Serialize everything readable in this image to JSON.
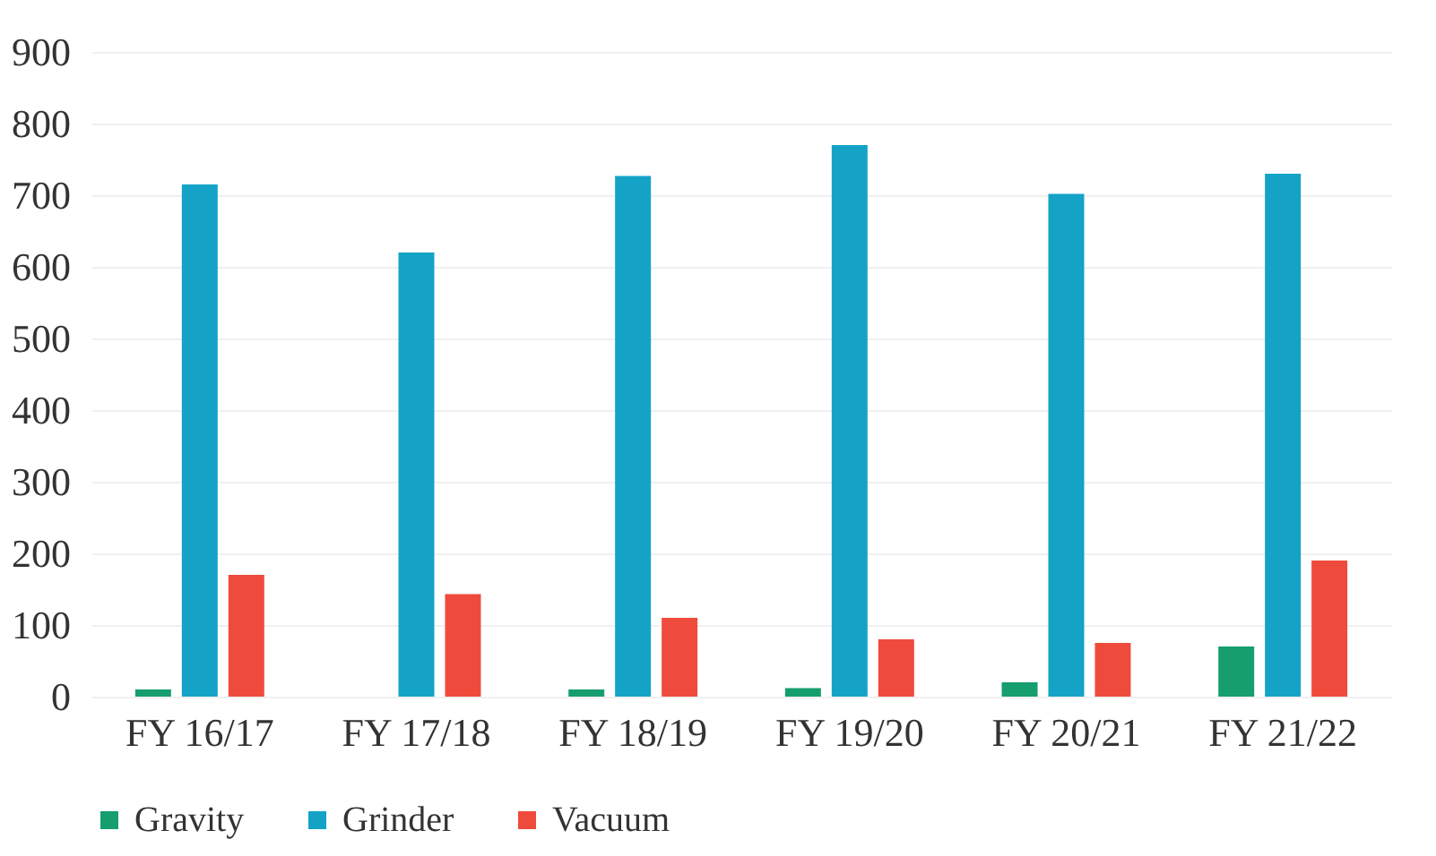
{
  "chart_data": {
    "type": "bar",
    "categories": [
      "FY 16/17",
      "FY 17/18",
      "FY 18/19",
      "FY 19/20",
      "FY 20/21",
      "FY 21/22"
    ],
    "series": [
      {
        "name": "Gravity",
        "color": "#169e6e",
        "values": [
          10,
          0,
          10,
          12,
          20,
          70
        ]
      },
      {
        "name": "Grinder",
        "color": "#14a3c7",
        "values": [
          715,
          620,
          727,
          770,
          702,
          730
        ]
      },
      {
        "name": "Vacuum",
        "color": "#ef4b3c",
        "values": [
          170,
          143,
          110,
          80,
          75,
          190
        ]
      }
    ],
    "ylim": [
      0,
      900
    ],
    "yticks": [
      0,
      100,
      200,
      300,
      400,
      500,
      600,
      700,
      800,
      900
    ],
    "grid": "y",
    "legend": "bottom"
  }
}
